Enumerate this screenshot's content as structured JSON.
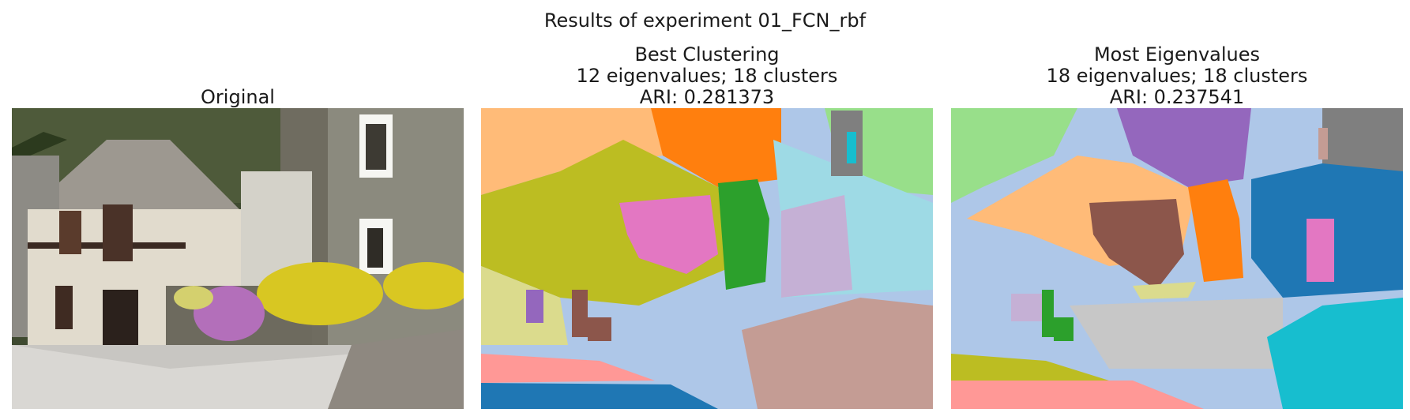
{
  "suptitle": "Results of experiment 01_FCN_rbf",
  "panels": [
    {
      "title_lines": [
        "Original"
      ],
      "image": "original-photo"
    },
    {
      "title_lines": [
        "Best Clustering",
        "12 eigenvalues; 18 clusters",
        "ARI: 0.281373"
      ],
      "image": "cluster-map"
    },
    {
      "title_lines": [
        "Most Eigenvalues",
        "18 eigenvalues; 18 clusters",
        "ARI: 0.237541"
      ],
      "image": "cluster-map"
    }
  ],
  "colors": {
    "tab_blue": "#1f77b4",
    "tab_light_blue": "#aec7e8",
    "tab_orange": "#ff7f0e",
    "tab_light_orange": "#ffbb78",
    "tab_green": "#2ca02c",
    "tab_light_green": "#98df8a",
    "tab_red": "#d62728",
    "tab_pink_red": "#ff9896",
    "tab_purple": "#9467bd",
    "tab_light_purple": "#c5b0d5",
    "tab_brown": "#8c564b",
    "tab_light_brown": "#c49c94",
    "tab_pink": "#e377c2",
    "tab_light_pink": "#f7b6d2",
    "tab_gray": "#7f7f7f",
    "tab_light_gray": "#c7c7c7",
    "tab_olive": "#bcbd22",
    "tab_light_olive": "#dbdb8d",
    "tab_cyan": "#17becf",
    "tab_light_cyan": "#9edae5"
  }
}
